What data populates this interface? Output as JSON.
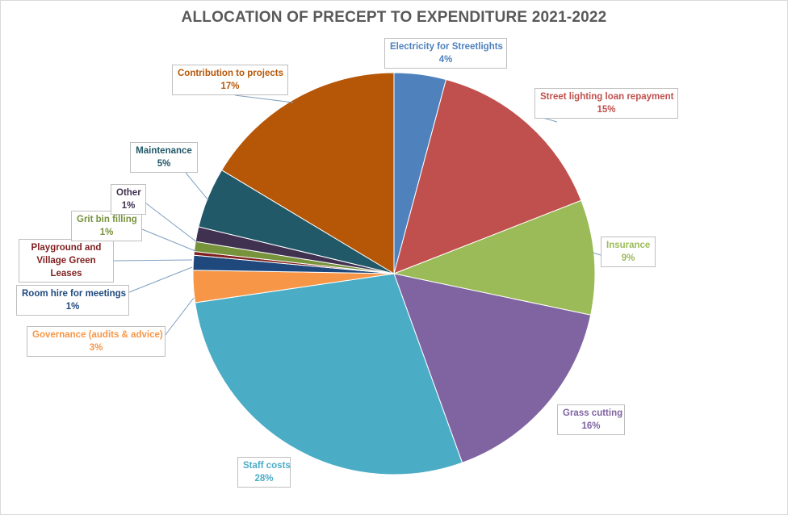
{
  "chart_data": {
    "type": "pie",
    "title": "ALLOCATION OF PRECEPT TO EXPENDITURE 2021-2022",
    "slices": [
      {
        "name": "Electricity for Streetlights",
        "value": 4.2,
        "label": "4%",
        "color": "#4f81bd"
      },
      {
        "name": "Street lighting loan repayment",
        "value": 15.0,
        "label": "15%",
        "color": "#c0504d"
      },
      {
        "name": "Insurance",
        "value": 9.3,
        "label": "9%",
        "color": "#9bbb59"
      },
      {
        "name": "Grass cutting",
        "value": 16.3,
        "label": "16%",
        "color": "#8064a2"
      },
      {
        "name": "Staff costs",
        "value": 28.4,
        "label": "28%",
        "color": "#4bacc6"
      },
      {
        "name": "Governance (audits & advice)",
        "value": 2.6,
        "label": "3%",
        "color": "#f79646"
      },
      {
        "name": "Room hire for meetings",
        "value": 1.2,
        "label": "1%",
        "color": "#1f497d"
      },
      {
        "name": "Playground and Village Green Leases",
        "value": 0.3,
        "label": "",
        "color": "#7f1f1f"
      },
      {
        "name": "Grit bin filling",
        "value": 0.8,
        "label": "1%",
        "color": "#77933c"
      },
      {
        "name": "Other",
        "value": 1.2,
        "label": "1%",
        "color": "#403151"
      },
      {
        "name": "Maintenance",
        "value": 4.9,
        "label": "5%",
        "color": "#215968"
      },
      {
        "name": "Contribution to projects",
        "value": 16.5,
        "label": "17%",
        "color": "#b65708"
      }
    ],
    "label_text_colors": [
      "#4f81bd",
      "#c0504d",
      "#9bbb59",
      "#8064a2",
      "#4bacc6",
      "#f79646",
      "#1f497d",
      "#7f1f1f",
      "#77933c",
      "#403151",
      "#215968",
      "#b65708"
    ]
  }
}
